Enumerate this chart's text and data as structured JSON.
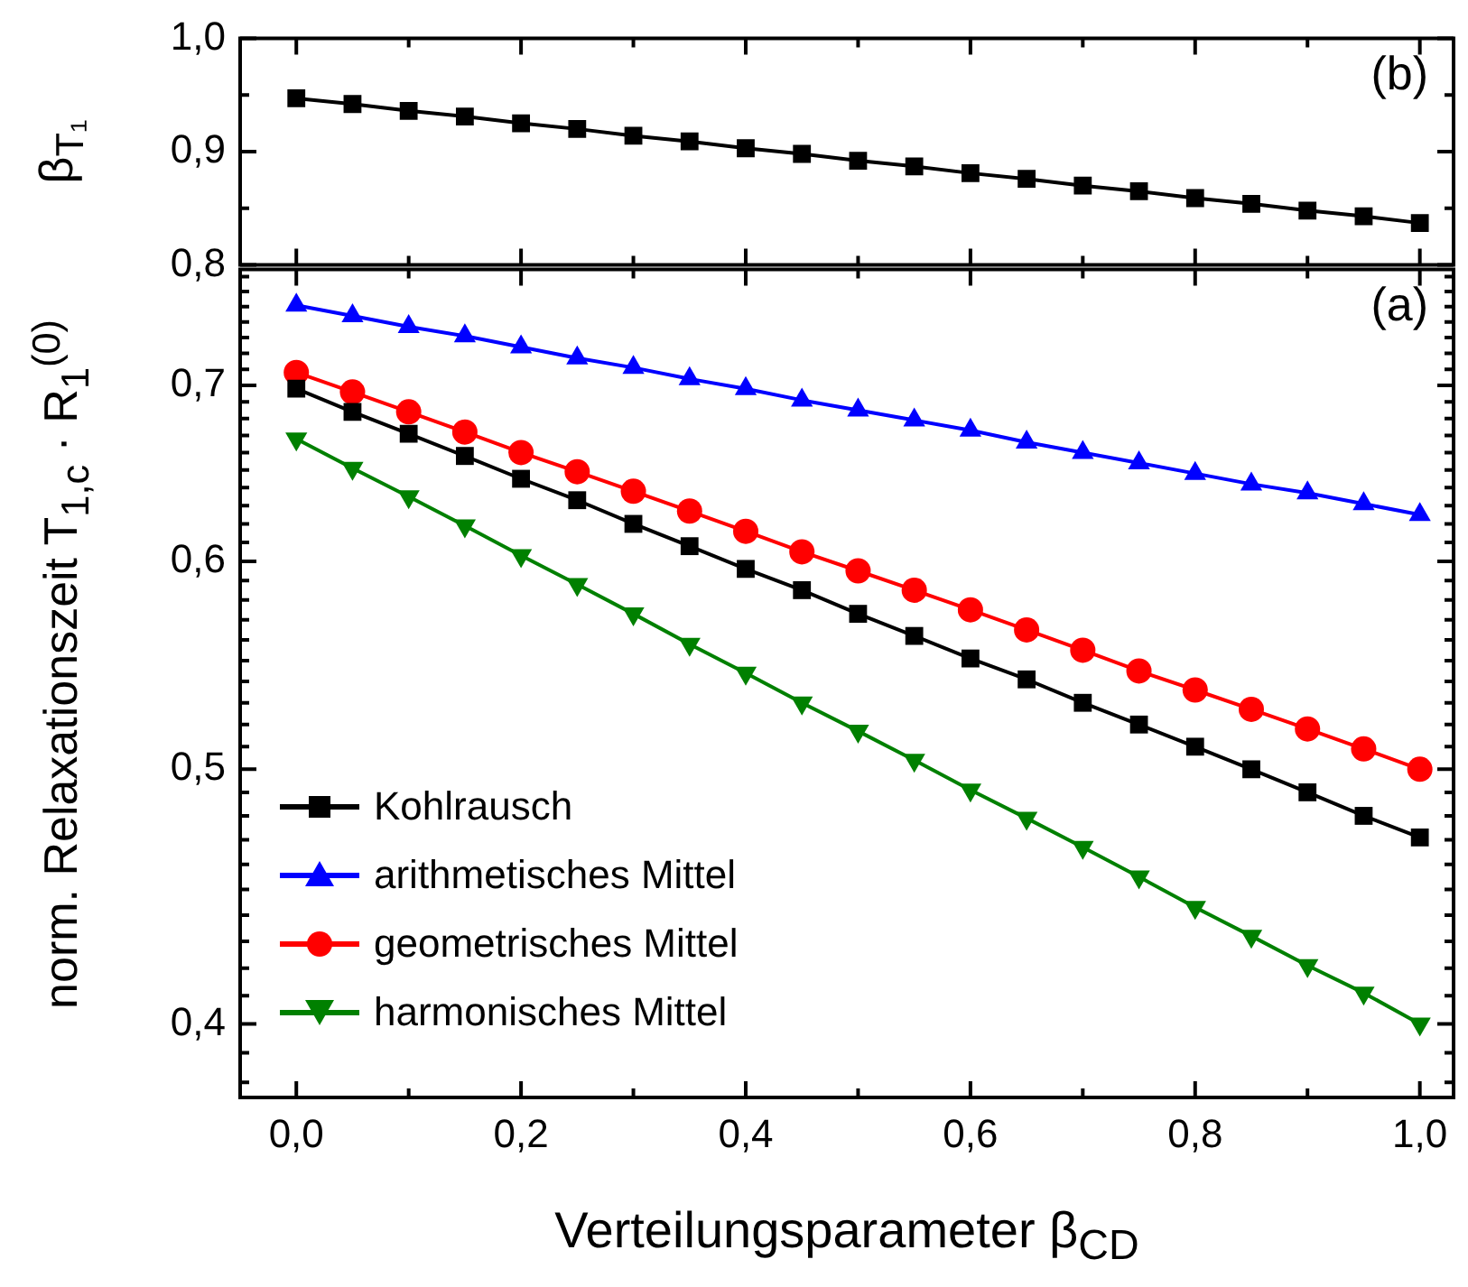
{
  "chart_data": [
    {
      "type": "line",
      "ylabel": "β$_{T₁}$",
      "annotations": [
        "(b)"
      ],
      "tick_labels": "y",
      "line_style": "solid",
      "x": [
        0,
        0.05,
        0.1,
        0.15,
        0.2,
        0.25,
        0.3,
        0.35,
        0.4,
        0.45,
        0.5,
        0.55,
        0.6,
        0.65,
        0.7,
        0.75,
        0.8,
        0.85,
        0.9,
        0.95,
        1
      ],
      "xlim": [
        -0.05,
        1.03
      ],
      "xticks": [
        0,
        {
          "value": 0.1,
          "label": null
        },
        0.2,
        {
          "value": 0.3,
          "label": null
        },
        0.4,
        {
          "value": 0.5,
          "label": null
        },
        0.6,
        {
          "value": 0.7,
          "label": null
        },
        0.8,
        {
          "value": 0.9,
          "label": null
        },
        1
      ],
      "ylim": [
        0.8,
        1.0
      ],
      "yticks": [
        {
          "value": 0.8,
          "label": "0,8"
        },
        {
          "value": 0.85,
          "label": null
        },
        {
          "value": 0.9,
          "label": "0,9"
        },
        {
          "value": 0.95,
          "label": null
        },
        {
          "value": 1.0,
          "label": "1,0"
        }
      ],
      "series": [
        {
          "color": "#000000",
          "marker": "square",
          "values": [
            0.947,
            0.942,
            0.936,
            0.931,
            0.925,
            0.92,
            0.914,
            0.909,
            0.903,
            0.898,
            0.892,
            0.887,
            0.881,
            0.876,
            0.87,
            0.865,
            0.859,
            0.854,
            0.848,
            0.843,
            0.837
          ]
        }
      ]
    },
    {
      "type": "line",
      "ylabel": "norm. Relaxationszeit T$_{1,c}$ · R$_{1}$$^{(0)}$",
      "xlabel": "Verteilungsparameter β$_{CD}$",
      "annotations": [
        "(a)"
      ],
      "log": "y",
      "legend": "bottom left",
      "line_style": "solid",
      "x": [
        0,
        0.05,
        0.1,
        0.15,
        0.2,
        0.25,
        0.3,
        0.35,
        0.4,
        0.45,
        0.5,
        0.55,
        0.6,
        0.65,
        0.7,
        0.75,
        0.8,
        0.85,
        0.9,
        0.95,
        1
      ],
      "xlim": [
        -0.05,
        1.03
      ],
      "xticks": [
        {
          "value": 0,
          "label": "0,0"
        },
        {
          "value": 0.1,
          "label": null
        },
        {
          "value": 0.2,
          "label": "0,2"
        },
        {
          "value": 0.3,
          "label": null
        },
        {
          "value": 0.4,
          "label": "0,4"
        },
        {
          "value": 0.5,
          "label": null
        },
        {
          "value": 0.6,
          "label": "0,6"
        },
        {
          "value": 0.7,
          "label": null
        },
        {
          "value": 0.8,
          "label": "0,8"
        },
        {
          "value": 0.9,
          "label": null
        },
        {
          "value": 1,
          "label": "1,0"
        }
      ],
      "ylim": [
        0.375,
        0.775
      ],
      "yticks": [
        {
          "value": 0.38,
          "label": null
        },
        {
          "value": 0.39,
          "label": null
        },
        {
          "value": 0.4,
          "label": "0,4"
        },
        {
          "value": 0.41,
          "label": null
        },
        {
          "value": 0.42,
          "label": null
        },
        {
          "value": 0.43,
          "label": null
        },
        {
          "value": 0.44,
          "label": null
        },
        {
          "value": 0.45,
          "label": null
        },
        {
          "value": 0.46,
          "label": null
        },
        {
          "value": 0.47,
          "label": null
        },
        {
          "value": 0.48,
          "label": null
        },
        {
          "value": 0.49,
          "label": null
        },
        {
          "value": 0.5,
          "label": "0,5"
        },
        {
          "value": 0.51,
          "label": null
        },
        {
          "value": 0.52,
          "label": null
        },
        {
          "value": 0.53,
          "label": null
        },
        {
          "value": 0.54,
          "label": null
        },
        {
          "value": 0.55,
          "label": null
        },
        {
          "value": 0.56,
          "label": null
        },
        {
          "value": 0.57,
          "label": null
        },
        {
          "value": 0.58,
          "label": null
        },
        {
          "value": 0.59,
          "label": null
        },
        {
          "value": 0.6,
          "label": "0,6"
        },
        {
          "value": 0.61,
          "label": null
        },
        {
          "value": 0.62,
          "label": null
        },
        {
          "value": 0.63,
          "label": null
        },
        {
          "value": 0.64,
          "label": null
        },
        {
          "value": 0.65,
          "label": null
        },
        {
          "value": 0.66,
          "label": null
        },
        {
          "value": 0.67,
          "label": null
        },
        {
          "value": 0.68,
          "label": null
        },
        {
          "value": 0.69,
          "label": null
        },
        {
          "value": 0.7,
          "label": "0,7"
        },
        {
          "value": 0.71,
          "label": null
        },
        {
          "value": 0.72,
          "label": null
        },
        {
          "value": 0.73,
          "label": null
        },
        {
          "value": 0.74,
          "label": null
        },
        {
          "value": 0.75,
          "label": null
        },
        {
          "value": 0.76,
          "label": null
        },
        {
          "value": 0.77,
          "label": null
        }
      ],
      "series": [
        {
          "name": "Kohlrausch",
          "color": "#000000",
          "marker": "square",
          "values": [
            0.698,
            0.684,
            0.671,
            0.658,
            0.645,
            0.633,
            0.62,
            0.608,
            0.596,
            0.585,
            0.573,
            0.562,
            0.551,
            0.541,
            0.53,
            0.52,
            0.51,
            0.5,
            0.49,
            0.48,
            0.471
          ]
        },
        {
          "name": "arithmetisches Mittel",
          "color": "#0000ff",
          "marker": "triangle",
          "values": [
            0.751,
            0.744,
            0.737,
            0.731,
            0.724,
            0.717,
            0.711,
            0.704,
            0.698,
            0.691,
            0.685,
            0.679,
            0.673,
            0.666,
            0.66,
            0.654,
            0.648,
            0.642,
            0.637,
            0.631,
            0.625
          ]
        },
        {
          "name": "geometrisches Mittel",
          "color": "#ff0000",
          "marker": "circle",
          "values": [
            0.708,
            0.696,
            0.684,
            0.672,
            0.66,
            0.649,
            0.638,
            0.627,
            0.616,
            0.605,
            0.595,
            0.585,
            0.575,
            0.565,
            0.555,
            0.545,
            0.536,
            0.527,
            0.518,
            0.509,
            0.5
          ]
        },
        {
          "name": "harmonisches Mittel",
          "color": "#008000",
          "marker": "triangle-down",
          "values": [
            0.668,
            0.651,
            0.635,
            0.619,
            0.603,
            0.588,
            0.573,
            0.558,
            0.544,
            0.53,
            0.517,
            0.504,
            0.491,
            0.479,
            0.467,
            0.455,
            0.443,
            0.432,
            0.421,
            0.411,
            0.4
          ]
        }
      ]
    }
  ]
}
